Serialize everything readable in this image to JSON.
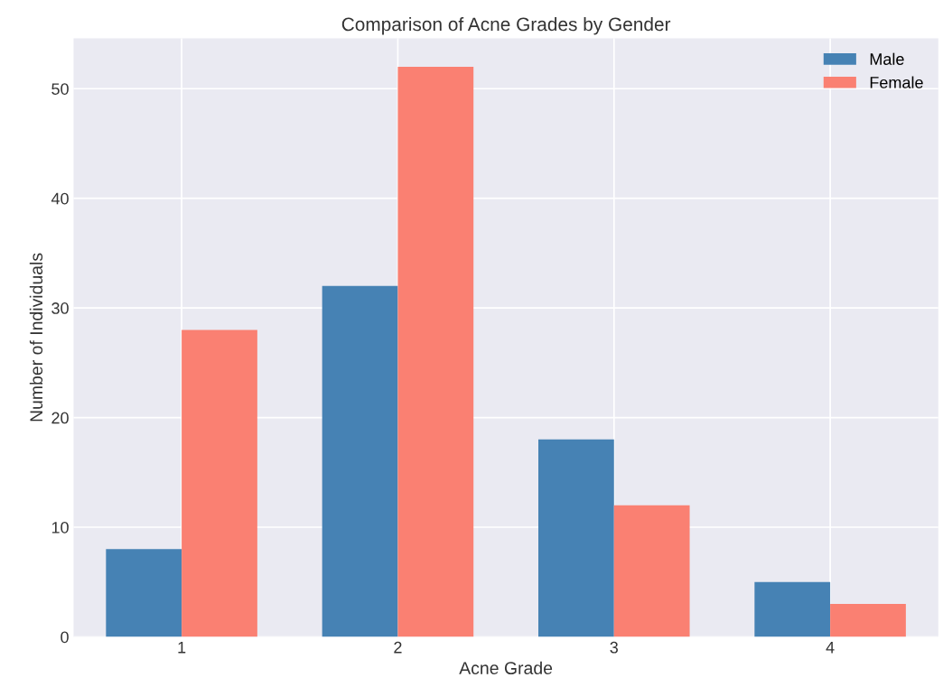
{
  "chart_data": {
    "type": "bar",
    "title": "Comparison of Acne Grades by Gender",
    "xlabel": "Acne Grade",
    "ylabel": "Number of Individuals",
    "categories": [
      "1",
      "2",
      "3",
      "4"
    ],
    "series": [
      {
        "name": "Male",
        "color": "#4682b4",
        "values": [
          8,
          32,
          18,
          5
        ]
      },
      {
        "name": "Female",
        "color": "#fa8072",
        "values": [
          28,
          52,
          12,
          3
        ]
      }
    ],
    "ylim": [
      0,
      54.6
    ],
    "yticks": [
      0,
      10,
      20,
      30,
      40,
      50
    ],
    "grid": true,
    "legend": "top right"
  }
}
